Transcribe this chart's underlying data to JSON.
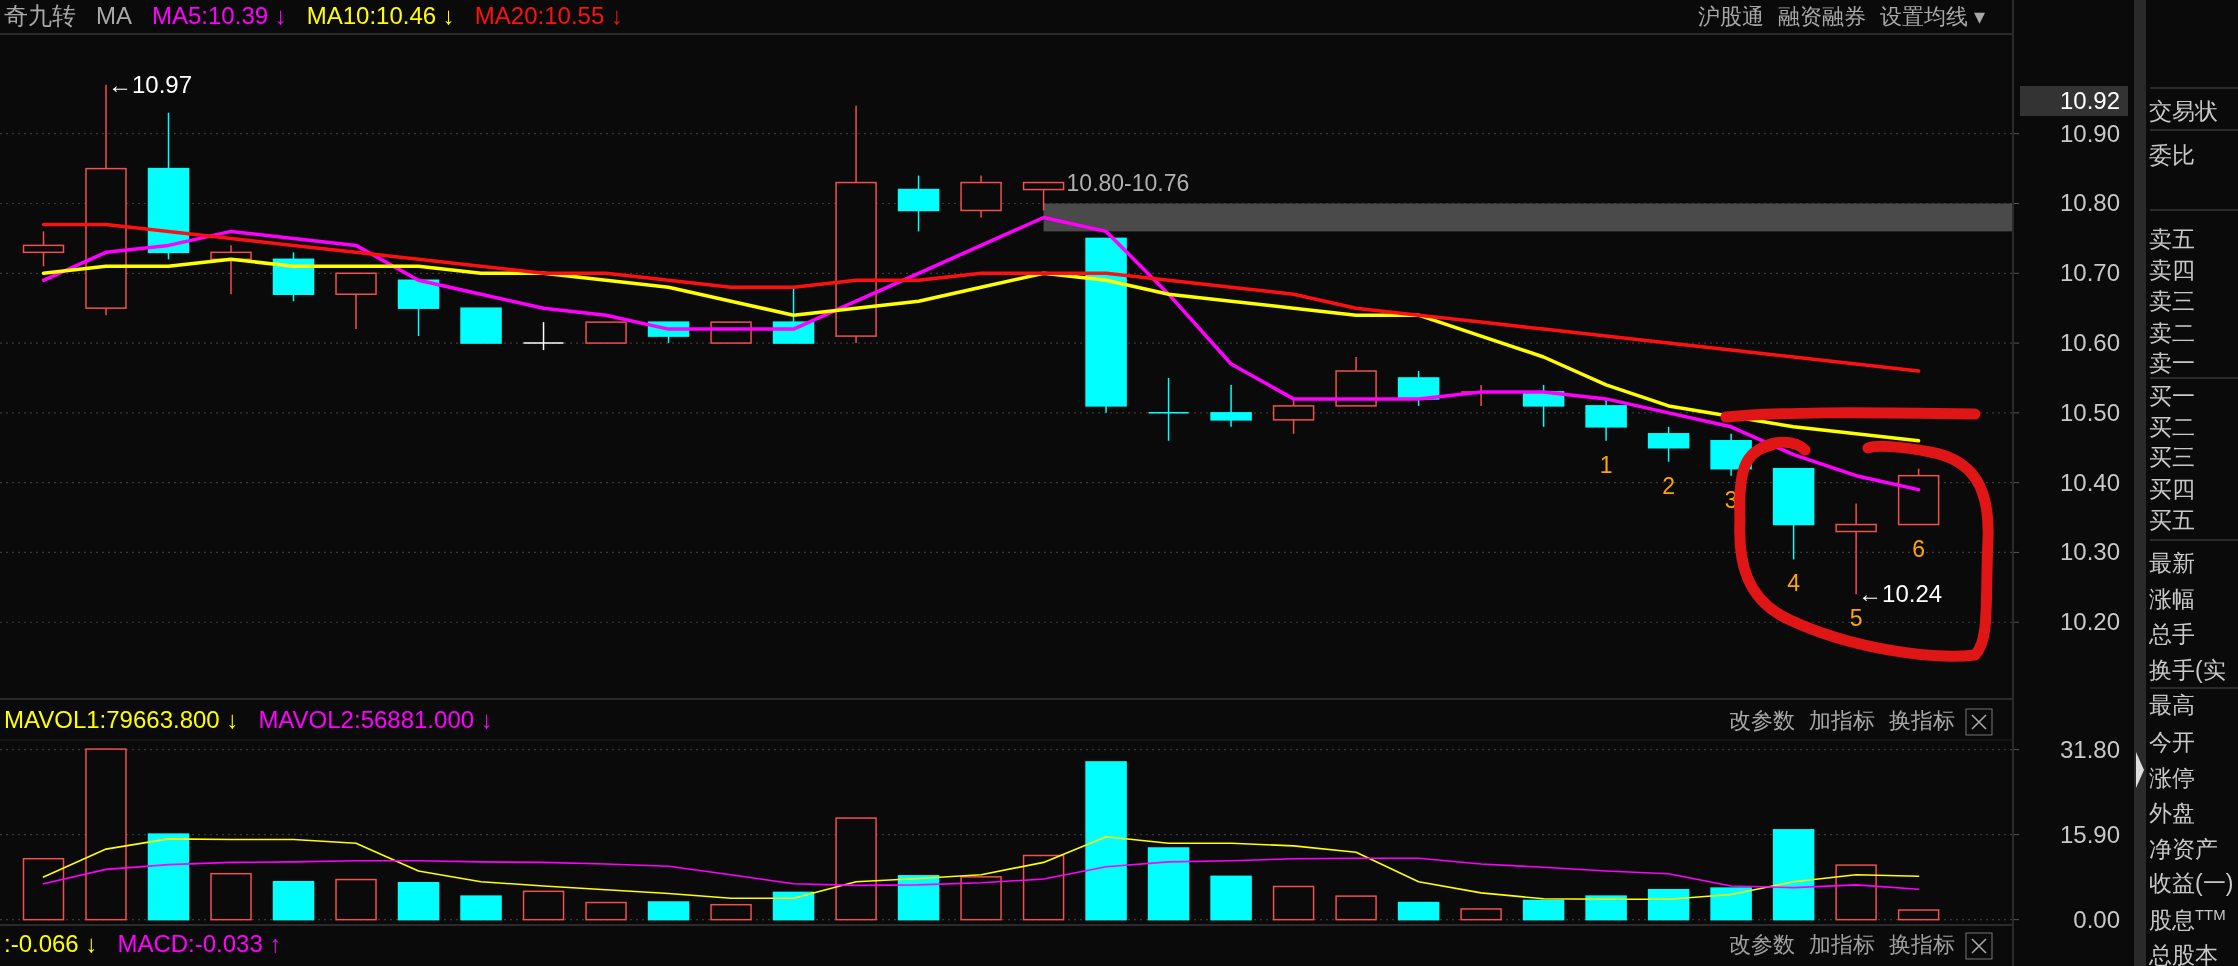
{
  "chart_data": [
    {
      "type": "candlestick",
      "title": "奇九转",
      "subtitle": "MA",
      "legend": "top left",
      "grid": "y",
      "tick_labels": "y",
      "categories": [
        null,
        null,
        null,
        null,
        null,
        null,
        null,
        null,
        null,
        null,
        null,
        null,
        null,
        null,
        null,
        null,
        null,
        null,
        null,
        null,
        null,
        null,
        null,
        null,
        null,
        null,
        null,
        null,
        null,
        null,
        null
      ],
      "ohlc": [
        [
          10.73,
          10.76,
          10.71,
          10.74
        ],
        [
          10.65,
          10.97,
          10.64,
          10.85
        ],
        [
          10.85,
          10.93,
          10.72,
          10.73
        ],
        [
          10.72,
          10.74,
          10.67,
          10.73
        ],
        [
          10.72,
          10.73,
          10.66,
          10.67
        ],
        [
          10.67,
          10.7,
          10.62,
          10.7
        ],
        [
          10.69,
          10.69,
          10.61,
          10.65
        ],
        [
          10.65,
          10.65,
          10.6,
          10.6
        ],
        [
          10.6,
          10.63,
          10.59,
          10.6
        ],
        [
          10.6,
          10.63,
          10.6,
          10.63
        ],
        [
          10.63,
          10.63,
          10.6,
          10.61
        ],
        [
          10.6,
          10.63,
          10.6,
          10.63
        ],
        [
          10.63,
          10.68,
          10.6,
          10.6
        ],
        [
          10.61,
          10.94,
          10.6,
          10.83
        ],
        [
          10.82,
          10.84,
          10.76,
          10.79
        ],
        [
          10.79,
          10.84,
          10.78,
          10.83
        ],
        [
          10.82,
          10.83,
          10.79,
          10.83
        ],
        [
          10.75,
          10.75,
          10.5,
          10.51
        ],
        [
          10.5,
          10.55,
          10.46,
          10.5
        ],
        [
          10.5,
          10.54,
          10.48,
          10.49
        ],
        [
          10.49,
          10.52,
          10.47,
          10.51
        ],
        [
          10.51,
          10.58,
          10.51,
          10.56
        ],
        [
          10.55,
          10.56,
          10.51,
          10.52
        ],
        [
          10.53,
          10.54,
          10.51,
          10.53
        ],
        [
          10.53,
          10.54,
          10.48,
          10.51
        ],
        [
          10.51,
          10.52,
          10.46,
          10.48
        ],
        [
          10.47,
          10.48,
          10.43,
          10.45
        ],
        [
          10.46,
          10.47,
          10.41,
          10.42
        ],
        [
          10.42,
          10.42,
          10.29,
          10.34
        ],
        [
          10.33,
          10.37,
          10.24,
          10.34
        ],
        [
          10.34,
          10.42,
          10.34,
          10.41
        ]
      ],
      "colors": [
        "#f05050",
        "#f05050",
        "#00ffff",
        "#f05050",
        "#00ffff",
        "#f05050",
        "#00ffff",
        "#00ffff",
        "#ffffff",
        "#f05050",
        "#00ffff",
        "#f05050",
        "#00ffff",
        "#f05050",
        "#00ffff",
        "#f05050",
        "#f05050",
        "#00ffff",
        "#00ffff",
        "#00ffff",
        "#f05050",
        "#f05050",
        "#00ffff",
        "#f05050",
        "#00ffff",
        "#00ffff",
        "#00ffff",
        "#00ffff",
        "#00ffff",
        "#f05050",
        "#f05050"
      ],
      "series": [
        {
          "type": "line",
          "name": "MA5:10.39 ↓",
          "color": "#ff00ff",
          "values": [
            10.69,
            10.73,
            10.74,
            10.76,
            10.75,
            10.74,
            10.69,
            10.67,
            10.65,
            10.64,
            10.62,
            10.62,
            10.62,
            10.66,
            10.7,
            10.74,
            10.78,
            10.76,
            10.67,
            10.57,
            10.52,
            10.52,
            10.52,
            10.53,
            10.53,
            10.52,
            10.5,
            10.48,
            10.44,
            10.41,
            10.39
          ]
        },
        {
          "type": "line",
          "name": "MA10:10.46 ↓",
          "color": "#ffff00",
          "values": [
            10.7,
            10.71,
            10.71,
            10.72,
            10.71,
            10.71,
            10.71,
            10.7,
            10.7,
            10.69,
            10.68,
            10.66,
            10.64,
            10.65,
            10.66,
            10.68,
            10.7,
            10.69,
            10.67,
            10.66,
            10.65,
            10.64,
            10.64,
            10.61,
            10.58,
            10.54,
            10.51,
            null,
            10.48,
            10.47,
            10.46
          ]
        },
        {
          "type": "line",
          "name": "MA20:10.55 ↓",
          "color": "#ff1010",
          "values": [
            10.77,
            10.77,
            10.76,
            10.75,
            10.74,
            10.73,
            10.72,
            10.71,
            10.7,
            10.7,
            10.69,
            10.68,
            10.68,
            10.69,
            10.69,
            10.7,
            10.7,
            10.7,
            10.69,
            10.68,
            10.67,
            10.65,
            10.64,
            10.63,
            10.62,
            10.61,
            10.6,
            10.59,
            10.58,
            10.57,
            10.56
          ]
        }
      ],
      "ylim": [
        10.09,
        11.04
      ],
      "yticks": [
        {
          "value": 10.2,
          "label": "10.20"
        },
        {
          "value": 10.3,
          "label": "10.30"
        },
        {
          "value": 10.4,
          "label": "10.40"
        },
        {
          "value": 10.5,
          "label": "10.50"
        },
        {
          "value": 10.6,
          "label": "10.60"
        },
        {
          "value": 10.7,
          "label": "10.70"
        },
        {
          "value": 10.8,
          "label": "10.80"
        },
        {
          "value": 10.9,
          "label": "10.90"
        }
      ],
      "bands": [
        {
          "axis": "y",
          "from": 10.76,
          "to": 10.8,
          "label": "10.80-10.76",
          "color": "#4a4a4a"
        }
      ],
      "annotations": [
        "←10.97",
        "←10.24",
        "1",
        "2",
        "3",
        "4",
        "5",
        "6",
        "10.92",
        "沪股通",
        "融资融券",
        "设置均线 ▾"
      ]
    },
    {
      "type": "bar",
      "legend": "top left",
      "grid": "y",
      "tick_labels": "y",
      "categories": [
        null,
        null,
        null,
        null,
        null,
        null,
        null,
        null,
        null,
        null,
        null,
        null,
        null,
        null,
        null,
        null,
        null,
        null,
        null,
        null,
        null,
        null,
        null,
        null,
        null,
        null,
        null,
        null,
        null,
        null,
        null
      ],
      "series": [
        {
          "type": "bar",
          "values": [
            11.4,
            31.9,
            16.0,
            8.6,
            7.1,
            7.5,
            6.9,
            4.4,
            5.3,
            3.2,
            3.3,
            2.8,
            5.1,
            19.0,
            8.2,
            8.0,
            12.0,
            29.5,
            13.4,
            8.1,
            6.2,
            4.4,
            3.2,
            2.0,
            3.6,
            4.4,
            5.6,
            5.9,
            16.8,
            10.2,
            1.8
          ],
          "colors": [
            "#f05050",
            "#f05050",
            "#00ffff",
            "#f05050",
            "#00ffff",
            "#f05050",
            "#00ffff",
            "#00ffff",
            "#f05050",
            "#f05050",
            "#00ffff",
            "#f05050",
            "#00ffff",
            "#f05050",
            "#00ffff",
            "#f05050",
            "#f05050",
            "#00ffff",
            "#00ffff",
            "#00ffff",
            "#f05050",
            "#f05050",
            "#00ffff",
            "#f05050",
            "#00ffff",
            "#00ffff",
            "#00ffff",
            "#00ffff",
            "#00ffff",
            "#f05050",
            "#f05050"
          ]
        },
        {
          "type": "line",
          "name": "MAVOL1:79663.800 ↓",
          "color": "#ffff00",
          "values": [
            8.0,
            13.2,
            15.1,
            15.0,
            15.0,
            14.3,
            9.1,
            7.1,
            6.3,
            5.6,
            4.9,
            4.0,
            4.0,
            7.1,
            7.7,
            8.4,
            10.7,
            15.5,
            14.3,
            14.3,
            13.8,
            12.6,
            7.1,
            5.0,
            3.9,
            3.8,
            3.8,
            4.7,
            7.1,
            8.4,
            8.1
          ]
        },
        {
          "type": "line",
          "name": "MAVOL2:56881.000 ↓",
          "color": "#ff00ff",
          "values": [
            6.7,
            9.4,
            10.3,
            10.7,
            10.8,
            11.0,
            11.0,
            10.8,
            10.7,
            10.4,
            10.0,
            8.4,
            6.7,
            6.4,
            6.5,
            6.9,
            7.6,
            9.9,
            10.8,
            11.0,
            11.4,
            11.5,
            11.5,
            10.4,
            9.8,
            9.1,
            8.6,
            6.3,
            6.0,
            6.5,
            5.7
          ]
        }
      ],
      "ylim": [
        -1,
        33.6
      ],
      "yticks": [
        {
          "value": 0,
          "label": "0.00"
        },
        {
          "value": 15.9,
          "label": "15.90"
        },
        {
          "value": 31.8,
          "label": "31.80"
        }
      ],
      "annotations": [
        "改参数",
        "加指标",
        "换指标"
      ]
    },
    {
      "type": "other",
      "annotations": [
        ":-0.066 ↓",
        "MACD:-0.033 ↑",
        "改参数",
        "加指标",
        "换指标"
      ],
      "colors": [
        "#ffff00",
        "#ff00ff",
        "#a0a0a0",
        "#a0a0a0",
        "#a0a0a0"
      ]
    },
    {
      "type": "other",
      "annotations": [
        "交易状",
        "委比",
        "卖五",
        "卖四",
        "卖三",
        "卖二",
        "卖一",
        "买一",
        "买二",
        "买三",
        "买四",
        "买五",
        "最新",
        "涨幅",
        "总手",
        "换手(实",
        "最高",
        "今开",
        "涨停",
        "外盘",
        "净资产",
        "收益(一)",
        "股息$^{TTM}$",
        "总股本"
      ]
    }
  ]
}
